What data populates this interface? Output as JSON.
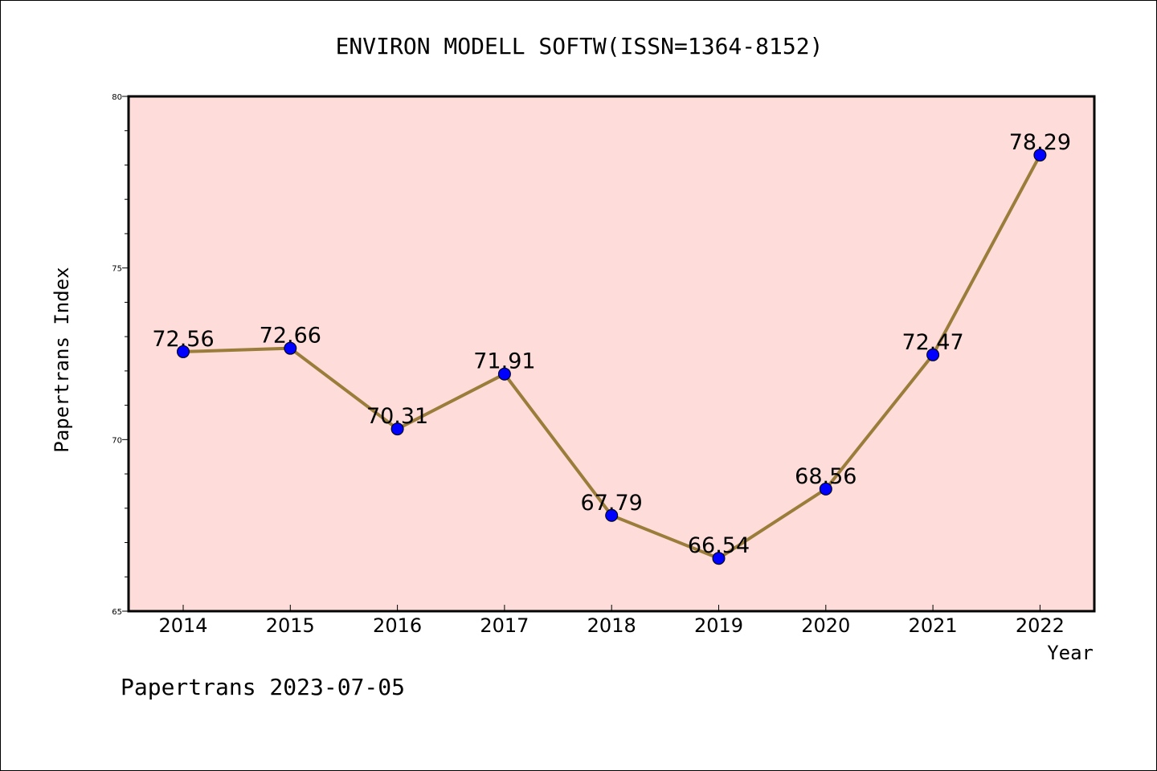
{
  "chart_data": {
    "type": "line",
    "title": "ENVIRON MODELL SOFTW(ISSN=1364-8152)",
    "xlabel": "Year",
    "ylabel": "Papertrans Index",
    "categories": [
      "2014",
      "2015",
      "2016",
      "2017",
      "2018",
      "2019",
      "2020",
      "2021",
      "2022"
    ],
    "series": [
      {
        "values": [
          72.56,
          72.66,
          70.31,
          71.91,
          67.79,
          66.54,
          68.56,
          72.47,
          78.29
        ],
        "data_labels": [
          "72.56",
          "72.66",
          "70.31",
          "71.91",
          "67.79",
          "66.54",
          "68.56",
          "72.47",
          "78.29"
        ],
        "line_color": "#9a7d3a",
        "marker_color": "#0000ff"
      }
    ],
    "ylim": [
      65,
      80
    ],
    "yticks": [
      65,
      70,
      75,
      80
    ],
    "ytick_labels": [
      "65",
      "70",
      "75",
      "80"
    ],
    "plot_background": "#fddcd9",
    "grid": false,
    "legend": "none"
  },
  "footer": "Papertrans 2023-07-05"
}
